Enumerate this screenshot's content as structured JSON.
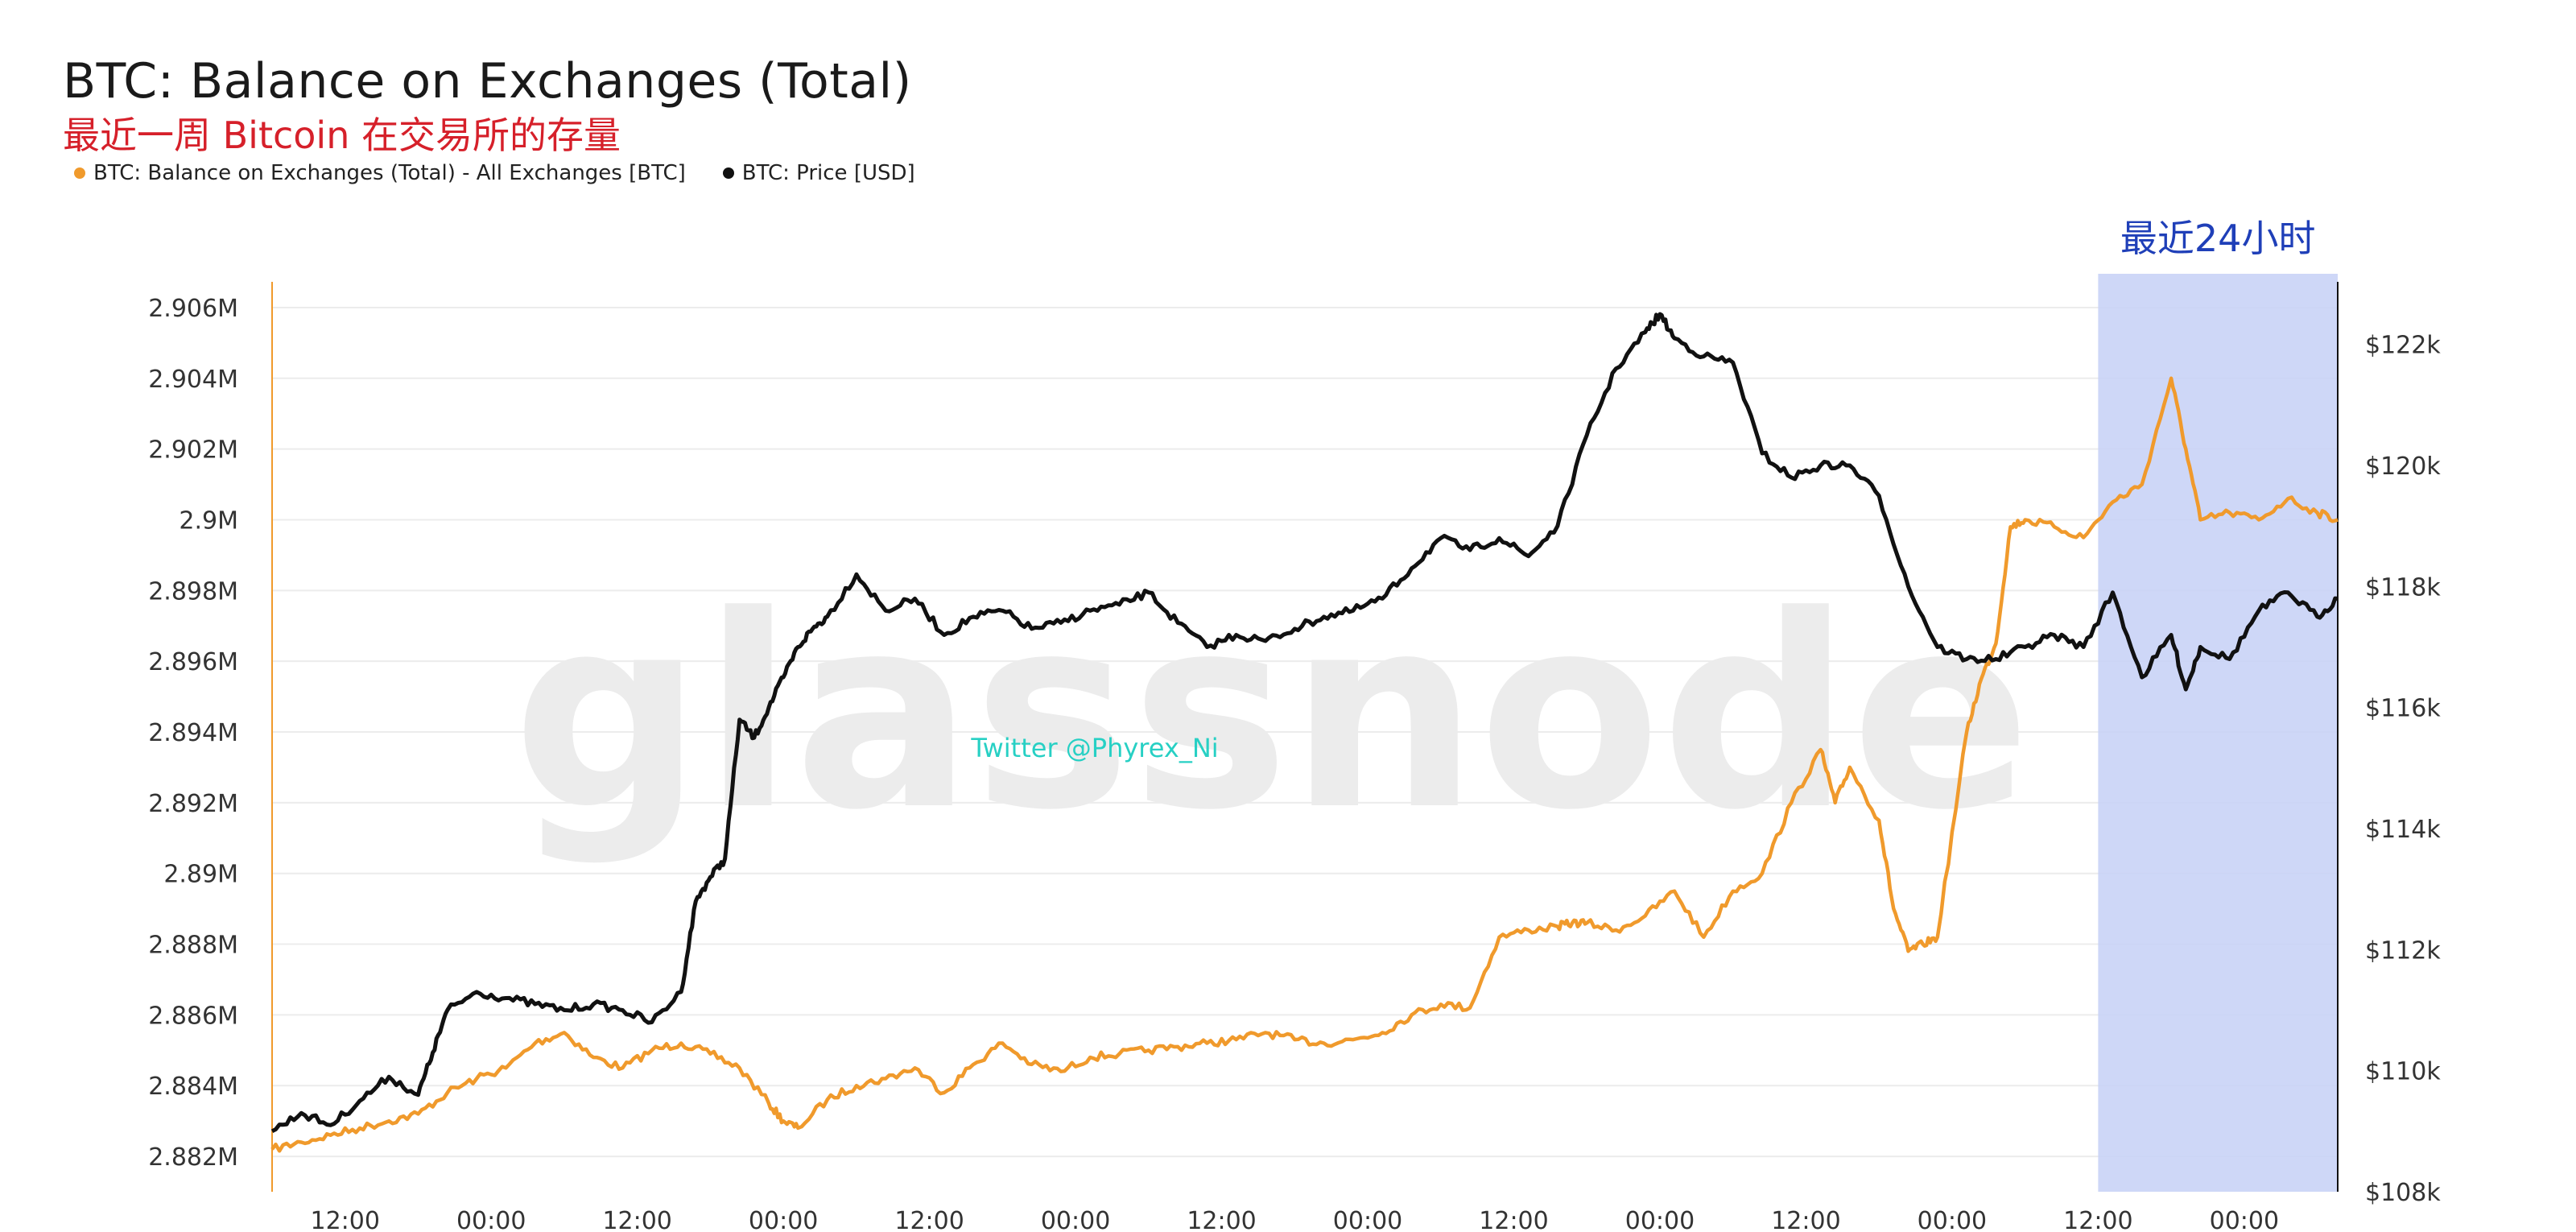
{
  "chart_data": {
    "type": "line",
    "title": "BTC: Balance on Exchanges (Total)",
    "subtitle": "最近一周 Bitcoin 在交易所的存量",
    "watermark": "glassnode",
    "credit": "Twitter @Phyrex_Ni",
    "highlight": {
      "label": "最近24小时",
      "x_start": 6.25,
      "x_end": 7.07,
      "color": "#c9d3f6"
    },
    "x_ticks": [
      {
        "x": 0.25,
        "label": "12:00"
      },
      {
        "x": 0.75,
        "label": "00:00"
      },
      {
        "x": 1.25,
        "label": "12:00"
      },
      {
        "x": 1.75,
        "label": "00:00"
      },
      {
        "x": 2.25,
        "label": "12:00"
      },
      {
        "x": 2.75,
        "label": "00:00"
      },
      {
        "x": 3.25,
        "label": "12:00"
      },
      {
        "x": 3.75,
        "label": "00:00"
      },
      {
        "x": 4.25,
        "label": "12:00"
      },
      {
        "x": 4.75,
        "label": "00:00"
      },
      {
        "x": 5.25,
        "label": "12:00"
      },
      {
        "x": 5.75,
        "label": "00:00"
      },
      {
        "x": 6.25,
        "label": "12:00"
      },
      {
        "x": 6.75,
        "label": "00:00"
      }
    ],
    "xlim": [
      0,
      7.07
    ],
    "y_left": {
      "ylim": [
        2.881,
        2.9065
      ],
      "ticks": [
        2.882,
        2.884,
        2.886,
        2.888,
        2.89,
        2.892,
        2.894,
        2.896,
        2.898,
        2.9,
        2.902,
        2.904,
        2.906
      ],
      "tick_labels": [
        "2.882M",
        "2.884M",
        "2.886M",
        "2.888M",
        "2.89M",
        "2.892M",
        "2.894M",
        "2.896M",
        "2.898M",
        "2.9M",
        "2.902M",
        "2.904M",
        "2.906M"
      ]
    },
    "y_right": {
      "ylim": [
        108,
        122.9
      ],
      "ticks": [
        108,
        110,
        112,
        114,
        116,
        118,
        120,
        122
      ],
      "tick_labels": [
        "$108k",
        "$110k",
        "$112k",
        "$114k",
        "$116k",
        "$118k",
        "$120k",
        "$122k"
      ]
    },
    "series": [
      {
        "name": "BTC: Balance on Exchanges (Total) - All Exchanges [BTC]",
        "axis": "left",
        "color": "#f09a2c",
        "x": [
          0.0,
          0.1,
          0.2,
          0.3,
          0.4,
          0.5,
          0.6,
          0.7,
          0.8,
          0.9,
          1.0,
          1.1,
          1.2,
          1.3,
          1.4,
          1.5,
          1.6,
          1.7,
          1.75,
          1.8,
          1.9,
          2.0,
          2.1,
          2.2,
          2.3,
          2.4,
          2.5,
          2.6,
          2.7,
          2.8,
          2.9,
          3.0,
          3.1,
          3.2,
          3.3,
          3.4,
          3.5,
          3.6,
          3.7,
          3.8,
          3.9,
          4.0,
          4.1,
          4.2,
          4.3,
          4.4,
          4.45,
          4.5,
          4.6,
          4.7,
          4.8,
          4.9,
          5.0,
          5.1,
          5.2,
          5.3,
          5.35,
          5.4,
          5.5,
          5.55,
          5.6,
          5.65,
          5.7,
          5.8,
          5.85,
          5.9,
          5.95,
          6.0,
          6.1,
          6.2,
          6.3,
          6.4,
          6.5,
          6.55,
          6.6,
          6.7,
          6.8,
          6.9,
          7.0,
          7.07
        ],
        "y": [
          2.8822,
          2.8824,
          2.8826,
          2.8828,
          2.883,
          2.8832,
          2.8838,
          2.8842,
          2.8845,
          2.8852,
          2.8855,
          2.8848,
          2.8845,
          2.885,
          2.8852,
          2.8849,
          2.8845,
          2.8835,
          2.883,
          2.8828,
          2.8836,
          2.884,
          2.8842,
          2.8845,
          2.8838,
          2.8846,
          2.8852,
          2.8846,
          2.8844,
          2.8848,
          2.8849,
          2.885,
          2.8851,
          2.8852,
          2.8853,
          2.8855,
          2.8853,
          2.8852,
          2.8853,
          2.8855,
          2.886,
          2.8863,
          2.8862,
          2.8882,
          2.8884,
          2.8885,
          2.8886,
          2.8886,
          2.8884,
          2.8888,
          2.8895,
          2.8882,
          2.8895,
          2.89,
          2.892,
          2.8935,
          2.892,
          2.893,
          2.8915,
          2.889,
          2.8878,
          2.888,
          2.8882,
          2.894,
          2.8955,
          2.8965,
          2.8998,
          2.9,
          2.8998,
          2.8995,
          2.9005,
          2.901,
          2.904,
          2.902,
          2.9,
          2.9002,
          2.9,
          2.9006,
          2.9002,
          2.9
        ]
      },
      {
        "name": "BTC: Price [USD]",
        "axis": "right",
        "color": "#111111",
        "x": [
          0.0,
          0.1,
          0.2,
          0.3,
          0.4,
          0.5,
          0.55,
          0.6,
          0.7,
          0.8,
          0.9,
          1.0,
          1.1,
          1.2,
          1.3,
          1.4,
          1.45,
          1.5,
          1.55,
          1.6,
          1.65,
          1.7,
          1.75,
          1.8,
          1.85,
          1.9,
          2.0,
          2.1,
          2.2,
          2.3,
          2.4,
          2.5,
          2.6,
          2.7,
          2.8,
          2.9,
          3.0,
          3.1,
          3.2,
          3.3,
          3.4,
          3.5,
          3.6,
          3.7,
          3.8,
          3.9,
          4.0,
          4.1,
          4.2,
          4.3,
          4.4,
          4.5,
          4.6,
          4.7,
          4.75,
          4.8,
          4.9,
          5.0,
          5.1,
          5.2,
          5.3,
          5.4,
          5.5,
          5.6,
          5.7,
          5.8,
          5.9,
          6.0,
          6.1,
          6.2,
          6.3,
          6.4,
          6.5,
          6.55,
          6.6,
          6.7,
          6.8,
          6.9,
          7.0,
          7.07
        ],
        "y": [
          109.0,
          109.3,
          109.1,
          109.5,
          109.9,
          109.6,
          110.3,
          111.0,
          111.3,
          111.2,
          111.1,
          111.0,
          111.1,
          111.0,
          110.8,
          111.3,
          112.8,
          113.2,
          113.5,
          115.8,
          115.5,
          116.0,
          116.5,
          117.0,
          117.3,
          117.5,
          118.2,
          117.6,
          117.8,
          117.2,
          117.5,
          117.6,
          117.3,
          117.4,
          117.6,
          117.7,
          117.9,
          117.4,
          117.0,
          117.2,
          117.1,
          117.3,
          117.5,
          117.6,
          117.8,
          118.3,
          118.8,
          118.6,
          118.8,
          118.5,
          119.0,
          120.5,
          121.6,
          122.2,
          122.5,
          122.1,
          121.8,
          121.7,
          120.2,
          119.8,
          120.0,
          120.0,
          119.5,
          118.0,
          117.0,
          116.8,
          116.8,
          117.0,
          117.2,
          117.0,
          117.9,
          116.5,
          117.2,
          116.3,
          117.0,
          116.8,
          117.6,
          117.9,
          117.5,
          117.8
        ]
      }
    ]
  },
  "legend": {
    "items": [
      {
        "label": "BTC: Balance on Exchanges (Total) - All Exchanges [BTC]",
        "color": "#f09a2c"
      },
      {
        "label": "BTC: Price [USD]",
        "color": "#111111"
      }
    ]
  }
}
